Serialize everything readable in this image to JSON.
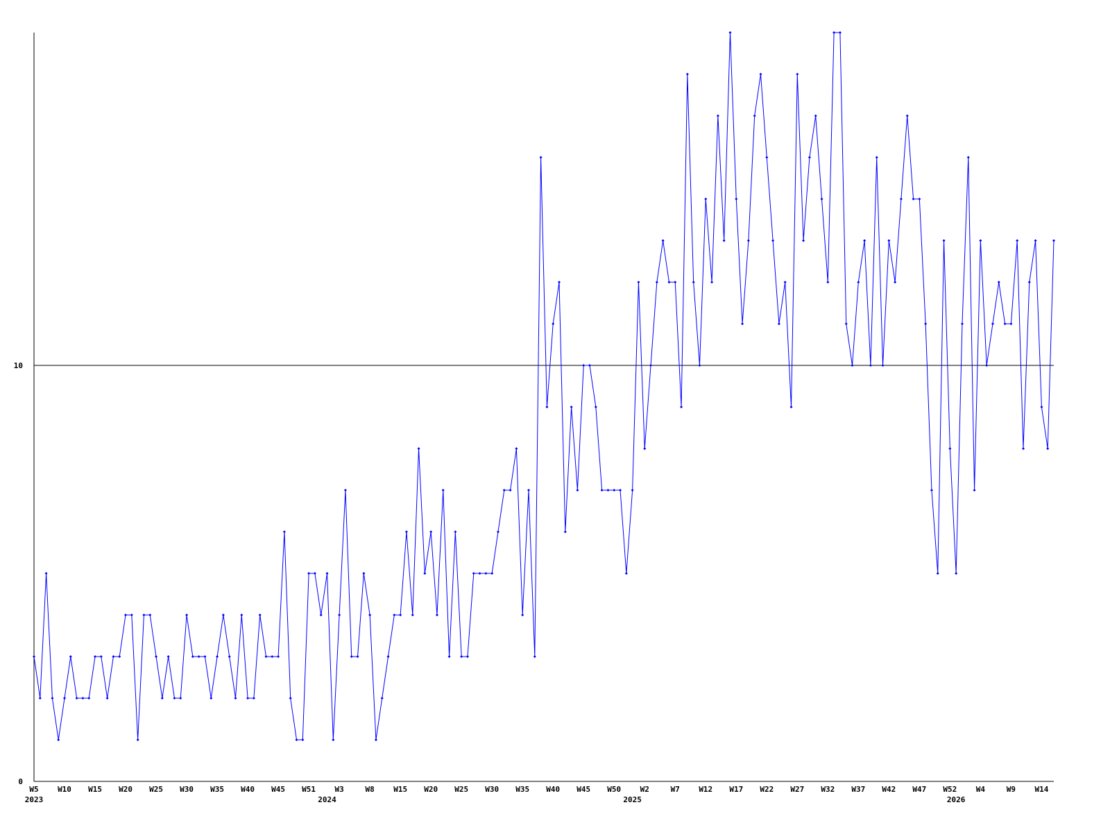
{
  "chart_data": {
    "type": "line",
    "color": "#0000ff",
    "grid": true,
    "ylim": [
      0,
      18
    ],
    "yticks": [
      0,
      10
    ],
    "categories": [
      "W5",
      null,
      null,
      null,
      null,
      "W10",
      null,
      null,
      null,
      null,
      "W15",
      null,
      null,
      null,
      null,
      "W20",
      null,
      null,
      null,
      null,
      "W25",
      null,
      null,
      null,
      null,
      "W30",
      null,
      null,
      null,
      null,
      "W35",
      null,
      null,
      null,
      null,
      "W40",
      null,
      null,
      null,
      null,
      "W45",
      null,
      null,
      null,
      null,
      "W51",
      null,
      null,
      null,
      null,
      "W3",
      null,
      null,
      null,
      null,
      "W8",
      null,
      null,
      null,
      null,
      "W15",
      null,
      null,
      null,
      null,
      "W20",
      null,
      null,
      null,
      null,
      "W25",
      null,
      null,
      null,
      null,
      "W30",
      null,
      null,
      null,
      null,
      "W35",
      null,
      null,
      null,
      null,
      "W40",
      null,
      null,
      null,
      null,
      "W45",
      null,
      null,
      null,
      null,
      "W50",
      null,
      null,
      null,
      null,
      "W2",
      null,
      null,
      null,
      null,
      "W7",
      null,
      null,
      null,
      null,
      "W12",
      null,
      null,
      null,
      null,
      "W17",
      null,
      null,
      null,
      null,
      "W22",
      null,
      null,
      null,
      null,
      "W27",
      null,
      null,
      null,
      null,
      "W32",
      null,
      null,
      null,
      null,
      "W37",
      null,
      null,
      null,
      null,
      "W42",
      null,
      null,
      null,
      null,
      "W47",
      null,
      null,
      null,
      null,
      "W52",
      null,
      null,
      null,
      null,
      "W4",
      null,
      null,
      null,
      null,
      "W9",
      null,
      null,
      null,
      null,
      "W14",
      null,
      null
    ],
    "years": [
      "2023",
      null,
      null,
      null,
      null,
      null,
      null,
      null,
      null,
      null,
      null,
      null,
      null,
      null,
      null,
      null,
      null,
      null,
      null,
      null,
      null,
      null,
      null,
      null,
      null,
      null,
      null,
      null,
      null,
      null,
      null,
      null,
      null,
      null,
      null,
      null,
      null,
      null,
      null,
      null,
      null,
      null,
      null,
      null,
      null,
      null,
      null,
      null,
      "2024",
      null,
      null,
      null,
      null,
      null,
      null,
      null,
      null,
      null,
      null,
      null,
      null,
      null,
      null,
      null,
      null,
      null,
      null,
      null,
      null,
      null,
      null,
      null,
      null,
      null,
      null,
      null,
      null,
      null,
      null,
      null,
      null,
      null,
      null,
      null,
      null,
      null,
      null,
      null,
      null,
      null,
      null,
      null,
      null,
      null,
      null,
      null,
      null,
      null,
      "2025",
      null,
      null,
      null,
      null,
      null,
      null,
      null,
      null,
      null,
      null,
      null,
      null,
      null,
      null,
      null,
      null,
      null,
      null,
      null,
      null,
      null,
      null,
      null,
      null,
      null,
      null,
      null,
      null,
      null,
      null,
      null,
      null,
      null,
      null,
      null,
      null,
      null,
      null,
      null,
      null,
      null,
      null,
      null,
      null,
      null,
      null,
      null,
      null,
      null,
      null,
      null,
      null,
      "2026",
      null,
      null,
      null,
      null,
      null,
      null,
      null,
      null,
      null,
      null,
      null,
      null,
      null,
      null,
      null,
      null
    ],
    "values": [
      3,
      2,
      5,
      2,
      1,
      2,
      3,
      2,
      2,
      2,
      3,
      3,
      2,
      3,
      3,
      4,
      4,
      1,
      4,
      4,
      3,
      2,
      3,
      2,
      2,
      4,
      3,
      3,
      3,
      2,
      3,
      4,
      3,
      2,
      4,
      2,
      2,
      4,
      3,
      3,
      3,
      6,
      2,
      1,
      1,
      5,
      5,
      4,
      5,
      1,
      4,
      7,
      3,
      3,
      5,
      4,
      1,
      2,
      3,
      4,
      4,
      6,
      4,
      8,
      5,
      6,
      4,
      7,
      3,
      6,
      3,
      3,
      5,
      5,
      5,
      5,
      6,
      7,
      7,
      8,
      4,
      7,
      3,
      15,
      9,
      11,
      12,
      6,
      9,
      7,
      10,
      10,
      9,
      7,
      7,
      7,
      7,
      5,
      7,
      12,
      8,
      10,
      12,
      13,
      12,
      12,
      9,
      17,
      12,
      10,
      14,
      12,
      16,
      13,
      18,
      14,
      11,
      13,
      16,
      17,
      15,
      13,
      11,
      12,
      9,
      17,
      13,
      15,
      16,
      14,
      12,
      18,
      18,
      11,
      10,
      12,
      13,
      10,
      15,
      10,
      13,
      12,
      14,
      16,
      14,
      14,
      11,
      7,
      5,
      13,
      8,
      5,
      11,
      15,
      7,
      13,
      10,
      11,
      12,
      11,
      11,
      13,
      8,
      12,
      13,
      9,
      8,
      13
    ]
  }
}
